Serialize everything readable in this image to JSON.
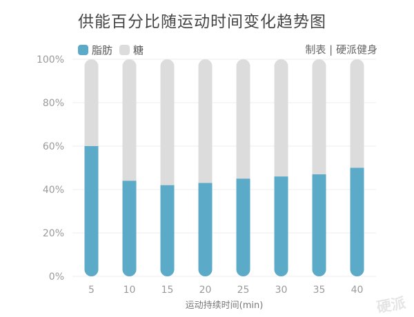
{
  "colors": {
    "fat": "#5aaac8",
    "sugar": "#dcdcdc",
    "grid": "#ececec",
    "tick": "#999999",
    "title": "#444444"
  },
  "header": {
    "title": "供能百分比随运动时间变化趋势图",
    "credit": "制表 | 硬派健身"
  },
  "legend": {
    "fat_label": "脂肪",
    "sugar_label": "糖"
  },
  "watermark": "硬派",
  "chart_data": {
    "type": "bar",
    "stacked": true,
    "percent": true,
    "title": "供能百分比随运动时间变化趋势图",
    "xlabel": "运动持续时间(min)",
    "ylabel": "",
    "categories": [
      "5",
      "10",
      "15",
      "20",
      "25",
      "30",
      "35",
      "40"
    ],
    "series": [
      {
        "name": "脂肪",
        "values": [
          60,
          44,
          42,
          43,
          45,
          46,
          47,
          50
        ]
      },
      {
        "name": "糖",
        "values": [
          40,
          56,
          58,
          57,
          55,
          54,
          53,
          50
        ]
      }
    ],
    "ylim": [
      0,
      100
    ],
    "yticks": [
      "0%",
      "20%",
      "40%",
      "60%",
      "80%",
      "100%"
    ],
    "grid": true,
    "legend_position": "top-left"
  }
}
